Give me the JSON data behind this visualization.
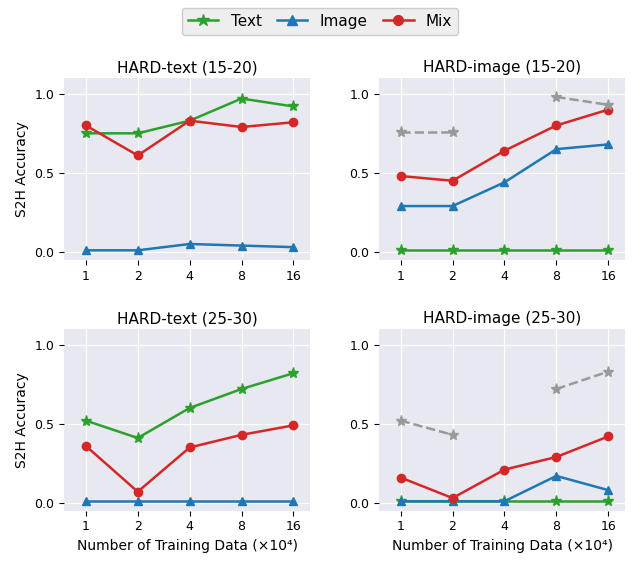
{
  "x": [
    1,
    2,
    4,
    8,
    16
  ],
  "panels": [
    {
      "title": "HARD-text (15-20)",
      "text": [
        0.75,
        0.75,
        0.83,
        0.97,
        0.92
      ],
      "image": [
        0.01,
        0.01,
        0.05,
        0.04,
        0.03
      ],
      "mix": [
        0.8,
        0.61,
        0.83,
        0.79,
        0.82
      ],
      "gray": null
    },
    {
      "title": "HARD-image (15-20)",
      "text": [
        0.01,
        0.01,
        0.01,
        0.01,
        0.01
      ],
      "image": [
        0.29,
        0.29,
        0.44,
        0.65,
        0.68
      ],
      "mix": [
        0.48,
        0.45,
        0.64,
        0.8,
        0.9
      ],
      "gray": [
        0.76,
        0.76,
        null,
        0.98,
        0.93
      ]
    },
    {
      "title": "HARD-text (25-30)",
      "text": [
        0.52,
        0.41,
        0.6,
        0.72,
        0.82
      ],
      "image": [
        0.01,
        0.01,
        0.01,
        0.01,
        0.01
      ],
      "mix": [
        0.36,
        0.07,
        0.35,
        0.43,
        0.49
      ],
      "gray": null
    },
    {
      "title": "HARD-image (25-30)",
      "text": [
        0.01,
        0.01,
        0.01,
        0.01,
        0.01
      ],
      "image": [
        0.01,
        0.01,
        0.01,
        0.17,
        0.08
      ],
      "mix": [
        0.16,
        0.03,
        0.21,
        0.29,
        0.42
      ],
      "gray": [
        0.52,
        0.43,
        null,
        0.72,
        0.83
      ]
    }
  ],
  "color_text": "#2ca02c",
  "color_image": "#1f77b4",
  "color_mix": "#d62728",
  "color_gray": "#999999",
  "bg_color": "#e8e8f0",
  "xlabel": "Number of Training Data (×10⁴)",
  "ylabel": "S2H Accuracy",
  "xticks": [
    1,
    2,
    4,
    8,
    16
  ]
}
